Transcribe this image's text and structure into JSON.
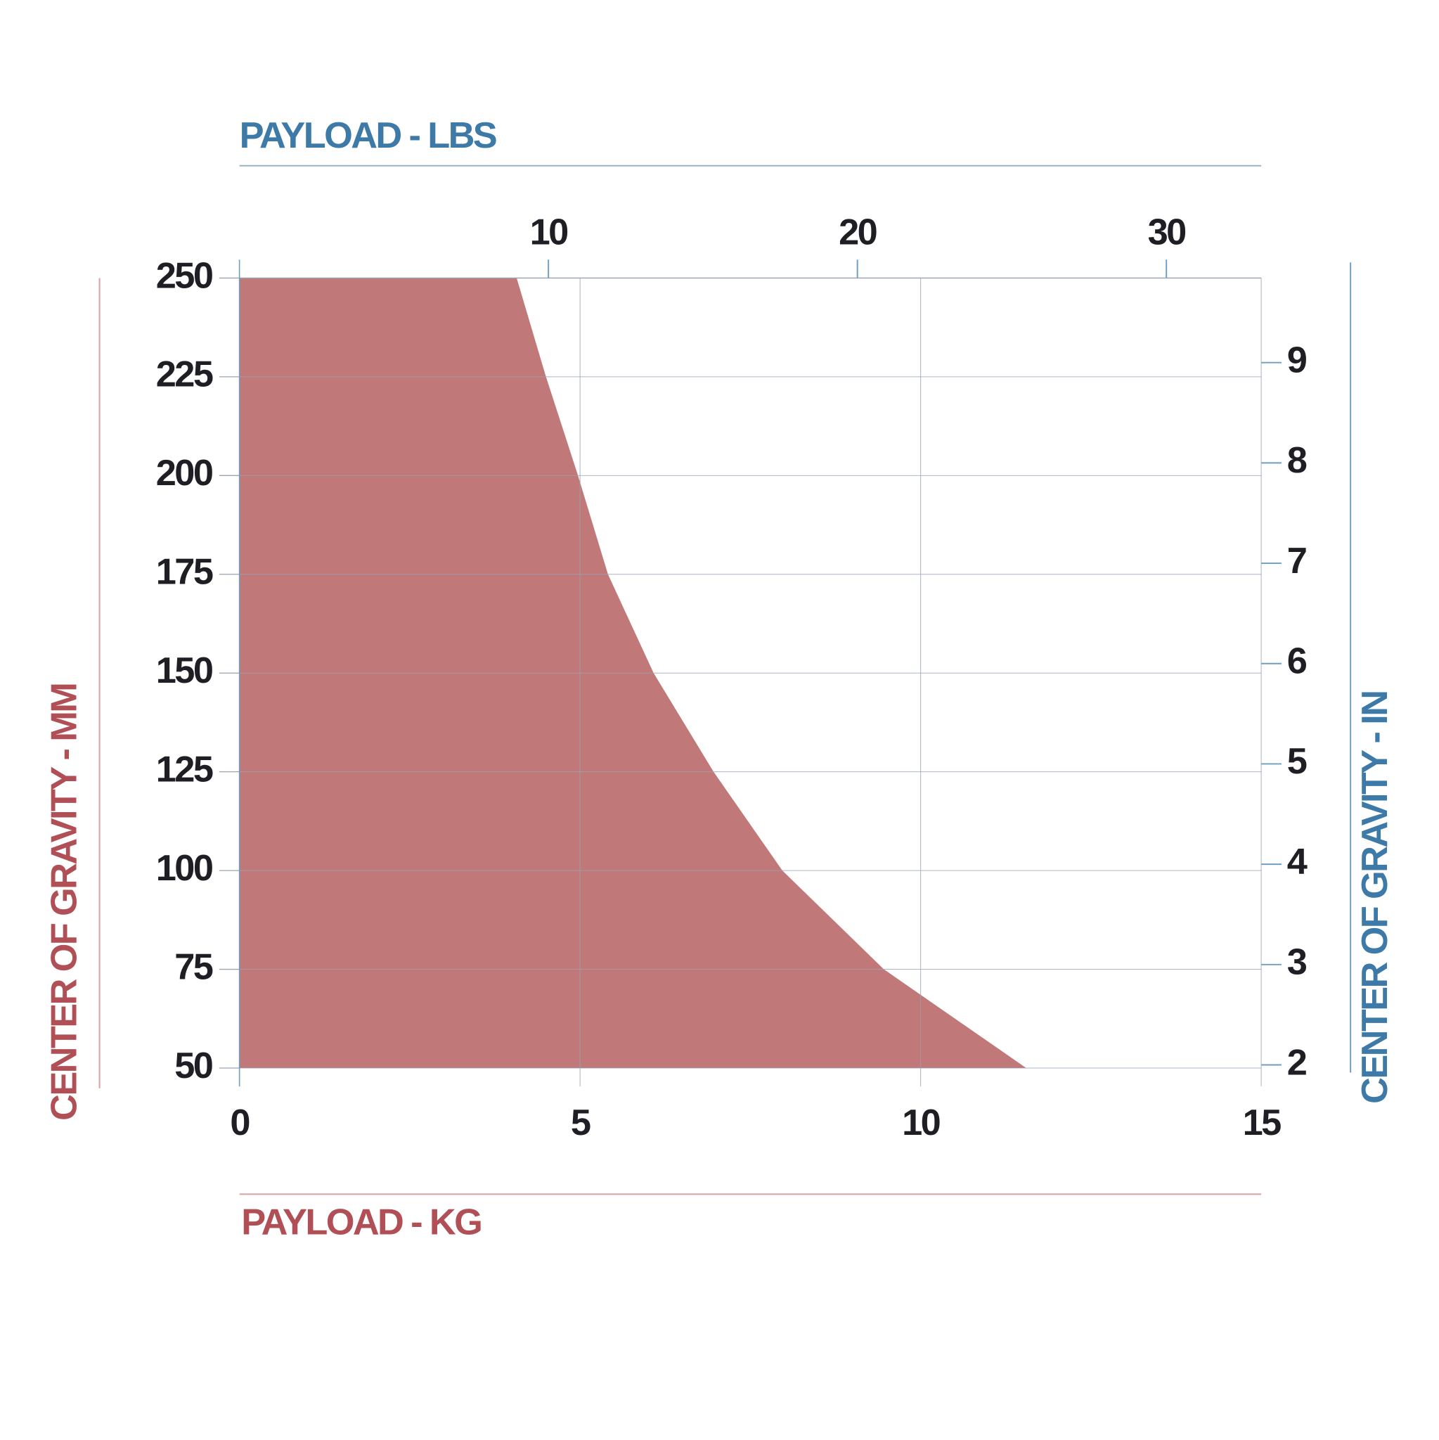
{
  "chart_data": {
    "type": "area",
    "x_label": "PAYLOAD - KG",
    "x2_label": "PAYLOAD - LBS",
    "y_label": "CENTER OF GRAVITY - MM",
    "y2_label": "CENTER OF GRAVITY - IN",
    "x": [
      0,
      4.07,
      4.5,
      4.97,
      5.41,
      6.08,
      6.96,
      7.97,
      9.46,
      11.55
    ],
    "values": [
      250,
      250,
      225,
      200,
      175,
      150,
      125,
      100,
      75,
      50
    ],
    "color": "#c07878",
    "xlim": [
      0,
      15
    ],
    "xticks": [
      0,
      5,
      10,
      15
    ],
    "ylim": [
      50,
      250
    ],
    "yticks": [
      50,
      75,
      100,
      125,
      150,
      175,
      200,
      225,
      250
    ],
    "x2lim": [
      0,
      33.07
    ],
    "x2ticks": [
      10,
      20,
      30
    ],
    "y2lim": [
      1.9685,
      9.8425
    ],
    "y2ticks": [
      2,
      3,
      4,
      5,
      6,
      7,
      8,
      9
    ],
    "grid": true
  }
}
